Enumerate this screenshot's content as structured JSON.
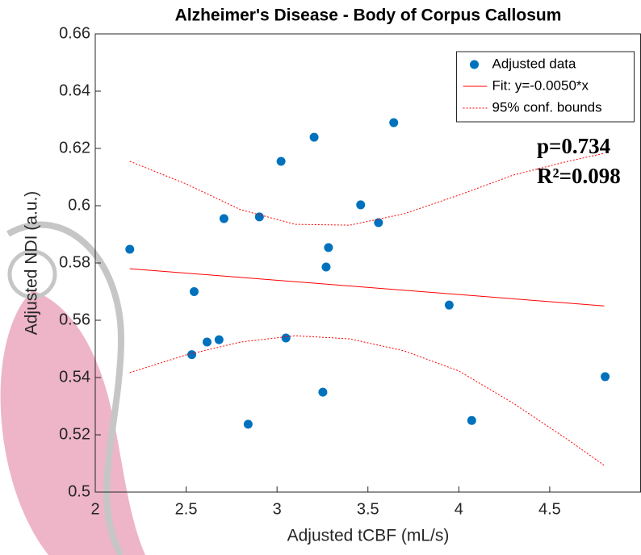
{
  "chart_data": {
    "type": "scatter",
    "title": "Alzheimer's Disease - Body of Corpus Callosum",
    "x_label": "Adjusted tCBF (mL/s)",
    "y_label": "Adjusted NDI (a.u.)",
    "xlim": [
      2,
      5
    ],
    "ylim": [
      0.5,
      0.66
    ],
    "xticks": [
      2,
      2.5,
      3,
      3.5,
      4,
      4.5
    ],
    "yticks": [
      0.5,
      0.52,
      0.54,
      0.56,
      0.58,
      0.6,
      0.62,
      0.64,
      0.66
    ],
    "legend": "top-right",
    "annotations": [
      "p=0.734",
      "R²=0.098"
    ],
    "series": [
      {
        "name": "Adjusted data",
        "type": "scatter",
        "color": "#0072bd",
        "x": [
          2.19,
          2.544,
          2.531,
          2.615,
          2.681,
          2.708,
          2.841,
          2.903,
          3.022,
          3.049,
          3.204,
          3.252,
          3.27,
          3.283,
          3.46,
          3.558,
          3.642,
          3.947,
          4.071,
          4.805
        ],
        "values": [
          0.5848,
          0.57,
          0.548,
          0.5524,
          0.5532,
          0.5955,
          0.5237,
          0.5961,
          0.6155,
          0.5538,
          0.6239,
          0.5349,
          0.5786,
          0.5854,
          0.6003,
          0.5941,
          0.629,
          0.5653,
          0.525,
          0.5403
        ]
      },
      {
        "name": "Fit: y=-0.0050*x",
        "type": "line",
        "color": "#ff0000",
        "style": "solid",
        "x": [
          2.19,
          4.8
        ],
        "values": [
          0.578,
          0.565
        ]
      },
      {
        "name": "95% conf. bounds",
        "type": "line",
        "color": "#ff0000",
        "style": "dotted",
        "x": [
          2.19,
          2.5,
          2.8,
          3.1,
          3.4,
          3.7,
          4.0,
          4.3,
          4.6,
          4.8
        ],
        "values": [
          0.6155,
          0.6076,
          0.5986,
          0.5935,
          0.5932,
          0.5972,
          0.6037,
          0.6107,
          0.6155,
          0.6183
        ],
        "lower": [
          0.5417,
          0.5479,
          0.5524,
          0.5546,
          0.5535,
          0.5493,
          0.5423,
          0.531,
          0.5183,
          0.5093
        ]
      }
    ]
  }
}
